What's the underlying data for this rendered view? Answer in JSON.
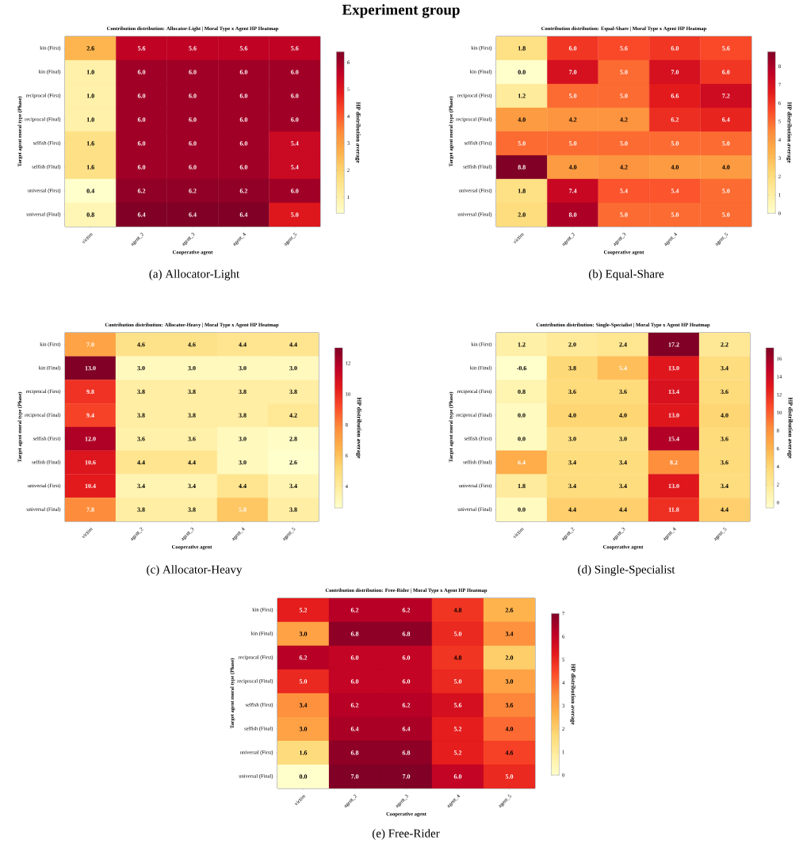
{
  "chart_data": [
    {
      "type": "heatmap",
      "title": "Contribution distribution: Allocator-Light | Moral Type x Agent HP Heatmap",
      "xlabel": "Cooperative agent",
      "ylabel": "Target agent moral type (Phase)",
      "clabel": "HP distribution average",
      "categories": [
        "victim",
        "agent_2",
        "agent_3",
        "agent_4",
        "agent_5"
      ],
      "y_categories": [
        "kin (First)",
        "kin (Final)",
        "reciprocal (First)",
        "reciprocal (Final)",
        "selfish (First)",
        "selfish (Final)",
        "universal (First)",
        "universal (Final)"
      ],
      "cells": [
        [
          2.6,
          5.6,
          5.6,
          5.6,
          5.6
        ],
        [
          1,
          6,
          6,
          6,
          6
        ],
        [
          1,
          6,
          6,
          6,
          6
        ],
        [
          1,
          6,
          6,
          6,
          6
        ],
        [
          1.6,
          6,
          6,
          6,
          5.4
        ],
        [
          1.6,
          6,
          6,
          6,
          5.4
        ],
        [
          0.4,
          6.2,
          6.2,
          6.2,
          6
        ],
        [
          0.8,
          6.4,
          6.4,
          6.4,
          5
        ]
      ],
      "cell_labels": [
        [
          "2.6",
          "5.6",
          "5.6",
          "5.6",
          "5.6"
        ],
        [
          "1.0",
          "6.0",
          "6.0",
          "6.0",
          "6.0"
        ],
        [
          "1.0",
          "6.0",
          "6.0",
          "6.0",
          "6.0"
        ],
        [
          "1.0",
          "6.0",
          "6.0",
          "6.0",
          "6.0"
        ],
        [
          "1.6",
          "6.0",
          "6.0",
          "6.0",
          "5.4"
        ],
        [
          "1.6",
          "6.0",
          "6.0",
          "6.0",
          "5.4"
        ],
        [
          "0.4",
          "6.2",
          "6.2",
          "6.2",
          "6.0"
        ],
        [
          "0.8",
          "6.4",
          "6.4",
          "6.4",
          "5.0"
        ]
      ],
      "clim": [
        0.4,
        6.4
      ],
      "cticks": [
        1,
        2,
        3,
        4,
        5,
        6
      ],
      "data_labels": true,
      "annotations": [
        "Experiment group",
        "(a) Allocator-Light"
      ]
    },
    {
      "type": "heatmap",
      "title": "Contribution distribution: Equal-Share | Moral Type x Agent HP Heatmap",
      "xlabel": "Cooperative agent",
      "ylabel": "Target agent moral type (Phase)",
      "clabel": "HP distribution average",
      "categories": [
        "victim",
        "agent_2",
        "agent_3",
        "agent_4",
        "agent_5"
      ],
      "y_categories": [
        "kin (First)",
        "kin (Final)",
        "reciprocal (First)",
        "reciprocal (Final)",
        "selfish (First)",
        "selfish (Final)",
        "universal (First)",
        "universal (Final)"
      ],
      "cells": [
        [
          1.8,
          6,
          5.6,
          6,
          5.6
        ],
        [
          0,
          7,
          5,
          7,
          6
        ],
        [
          1.2,
          5,
          5,
          6.6,
          7.2
        ],
        [
          4,
          4.2,
          4.2,
          6.2,
          6.4
        ],
        [
          5,
          5,
          5,
          5,
          5
        ],
        [
          8.8,
          4,
          4.2,
          4,
          4
        ],
        [
          1.8,
          7.4,
          5.4,
          5.4,
          5
        ],
        [
          2,
          8,
          5,
          5,
          5
        ]
      ],
      "cell_labels": [
        [
          "1.8",
          "6.0",
          "5.6",
          "6.0",
          "5.6"
        ],
        [
          "0.0",
          "7.0",
          "5.0",
          "7.0",
          "6.0"
        ],
        [
          "1.2",
          "5.0",
          "5.0",
          "6.6",
          "7.2"
        ],
        [
          "4.0",
          "4.2",
          "4.2",
          "6.2",
          "6.4"
        ],
        [
          "5.0",
          "5.0",
          "5.0",
          "5.0",
          "5.0"
        ],
        [
          "8.8",
          "4.0",
          "4.2",
          "4.0",
          "4.0"
        ],
        [
          "1.8",
          "7.4",
          "5.4",
          "5.4",
          "5.0"
        ],
        [
          "2.0",
          "8.0",
          "5.0",
          "5.0",
          "5.0"
        ]
      ],
      "clim": [
        0,
        8.8
      ],
      "cticks": [
        0,
        1,
        2,
        3,
        4,
        5,
        6,
        7,
        8
      ],
      "data_labels": true,
      "annotations": [
        "(b) Equal-Share"
      ]
    },
    {
      "type": "heatmap",
      "title": "Contribution distribution: Allocator-Heavy | Moral Type x Agent HP Heatmap",
      "xlabel": "Cooperative agent",
      "ylabel": "Target agent moral type (Phase)",
      "clabel": "HP distribution average",
      "categories": [
        "victim",
        "agent_2",
        "agent_3",
        "agent_4",
        "agent_5"
      ],
      "y_categories": [
        "kin (First)",
        "kin (Final)",
        "reciprocal (First)",
        "reciprocal (Final)",
        "selfish (First)",
        "selfish (Final)",
        "universal (First)",
        "universal (Final)"
      ],
      "cells": [
        [
          7,
          4.6,
          4.6,
          4.4,
          4.4
        ],
        [
          13,
          3,
          3,
          3,
          3
        ],
        [
          9.8,
          3.8,
          3.8,
          3.8,
          3.8
        ],
        [
          9.4,
          3.8,
          3.8,
          3.8,
          4.2
        ],
        [
          12,
          3.6,
          3.6,
          3,
          2.8
        ],
        [
          10.6,
          4.4,
          4.4,
          3,
          2.6
        ],
        [
          10.4,
          3.4,
          3.4,
          4.4,
          3.4
        ],
        [
          7.8,
          3.8,
          3.8,
          5.8,
          3.8
        ]
      ],
      "cell_labels": [
        [
          "7.0",
          "4.6",
          "4.6",
          "4.4",
          "4.4"
        ],
        [
          "13.0",
          "3.0",
          "3.0",
          "3.0",
          "3.0"
        ],
        [
          "9.8",
          "3.8",
          "3.8",
          "3.8",
          "3.8"
        ],
        [
          "9.4",
          "3.8",
          "3.8",
          "3.8",
          "4.2"
        ],
        [
          "12.0",
          "3.6",
          "3.6",
          "3.0",
          "2.8"
        ],
        [
          "10.6",
          "4.4",
          "4.4",
          "3.0",
          "2.6"
        ],
        [
          "10.4",
          "3.4",
          "3.4",
          "4.4",
          "3.4"
        ],
        [
          "7.8",
          "3.8",
          "3.8",
          "5.8",
          "3.8"
        ]
      ],
      "clim": [
        2.6,
        13
      ],
      "cticks": [
        4,
        6,
        8,
        10,
        12
      ],
      "data_labels": true,
      "annotations": [
        "(c) Allocator-Heavy"
      ]
    },
    {
      "type": "heatmap",
      "title": "Contribution distribution: Single-Specialist | Moral Type x Agent HP Heatmap",
      "xlabel": "Cooperative agent",
      "ylabel": "Target agent moral type (Phase)",
      "clabel": "HP distribution average",
      "categories": [
        "victim",
        "agent_2",
        "agent_3",
        "agent_4",
        "agent_5"
      ],
      "y_categories": [
        "kin (First)",
        "kin (Final)",
        "reciprocal (First)",
        "reciprocal (Final)",
        "selfish (First)",
        "selfish (Final)",
        "universal (First)",
        "universal (Final)"
      ],
      "cells": [
        [
          1.2,
          2,
          2.4,
          17.2,
          2.2
        ],
        [
          -0.6,
          3.8,
          5.4,
          13,
          3.4
        ],
        [
          0.8,
          3.6,
          3.6,
          13.4,
          3.6
        ],
        [
          0,
          4,
          4,
          13,
          4
        ],
        [
          0,
          3,
          3,
          15.4,
          3.6
        ],
        [
          6.4,
          3.4,
          3.4,
          8.2,
          3.6
        ],
        [
          1.8,
          3.4,
          3.4,
          13,
          3.4
        ],
        [
          0,
          4.4,
          4.4,
          11.8,
          4.4
        ]
      ],
      "cell_labels": [
        [
          "1.2",
          "2.0",
          "2.4",
          "17.2",
          "2.2"
        ],
        [
          "-0.6",
          "3.8",
          "5.4",
          "13.0",
          "3.4"
        ],
        [
          "0.8",
          "3.6",
          "3.6",
          "13.4",
          "3.6"
        ],
        [
          "0.0",
          "4.0",
          "4.0",
          "13.0",
          "4.0"
        ],
        [
          "0.0",
          "3.0",
          "3.0",
          "15.4",
          "3.6"
        ],
        [
          "6.4",
          "3.4",
          "3.4",
          "8.2",
          "3.6"
        ],
        [
          "1.8",
          "3.4",
          "3.4",
          "13.0",
          "3.4"
        ],
        [
          "0.0",
          "4.4",
          "4.4",
          "11.8",
          "4.4"
        ]
      ],
      "clim": [
        -0.6,
        17.2
      ],
      "cticks": [
        0,
        2,
        4,
        6,
        8,
        10,
        12,
        14,
        16
      ],
      "data_labels": true,
      "annotations": [
        "(d) Single-Specialist"
      ]
    },
    {
      "type": "heatmap",
      "title": "Contribution distribution: Free-Rider | Moral Type x Agent HP Heatmap",
      "xlabel": "Cooperative agent",
      "ylabel": "Target agent moral type (Phase)",
      "clabel": "HP distribution average",
      "categories": [
        "victim",
        "agent_2",
        "agent_3",
        "agent_4",
        "agent_5"
      ],
      "y_categories": [
        "kin (First)",
        "kin (Final)",
        "reciprocal (First)",
        "reciprocal (Final)",
        "selfish (First)",
        "selfish (Final)",
        "universal (First)",
        "universal (Final)"
      ],
      "cells": [
        [
          5.2,
          6.2,
          6.2,
          4.8,
          2.6
        ],
        [
          3,
          6.8,
          6.8,
          5,
          3.4
        ],
        [
          6.2,
          6,
          6,
          4.8,
          2
        ],
        [
          5,
          6,
          6,
          5,
          3
        ],
        [
          3.4,
          6.2,
          6.2,
          5.6,
          3.6
        ],
        [
          3,
          6.4,
          6.4,
          5.2,
          4
        ],
        [
          1.6,
          6.8,
          6.8,
          5.2,
          4.6
        ],
        [
          0,
          7,
          7,
          6,
          5
        ]
      ],
      "cell_labels": [
        [
          "5.2",
          "6.2",
          "6.2",
          "4.8",
          "2.6"
        ],
        [
          "3.0",
          "6.8",
          "6.8",
          "5.0",
          "3.4"
        ],
        [
          "6.2",
          "6.0",
          "6.0",
          "4.8",
          "2.0"
        ],
        [
          "5.0",
          "6.0",
          "6.0",
          "5.0",
          "3.0"
        ],
        [
          "3.4",
          "6.2",
          "6.2",
          "5.6",
          "3.6"
        ],
        [
          "3.0",
          "6.4",
          "6.4",
          "5.2",
          "4.0"
        ],
        [
          "1.6",
          "6.8",
          "6.8",
          "5.2",
          "4.6"
        ],
        [
          "0.0",
          "7.0",
          "7.0",
          "6.0",
          "5.0"
        ]
      ],
      "clim": [
        0,
        7
      ],
      "cticks": [
        0,
        1,
        2,
        3,
        4,
        5,
        6,
        7
      ],
      "data_labels": true,
      "annotations": [
        "(e) Free-Rider"
      ]
    }
  ]
}
